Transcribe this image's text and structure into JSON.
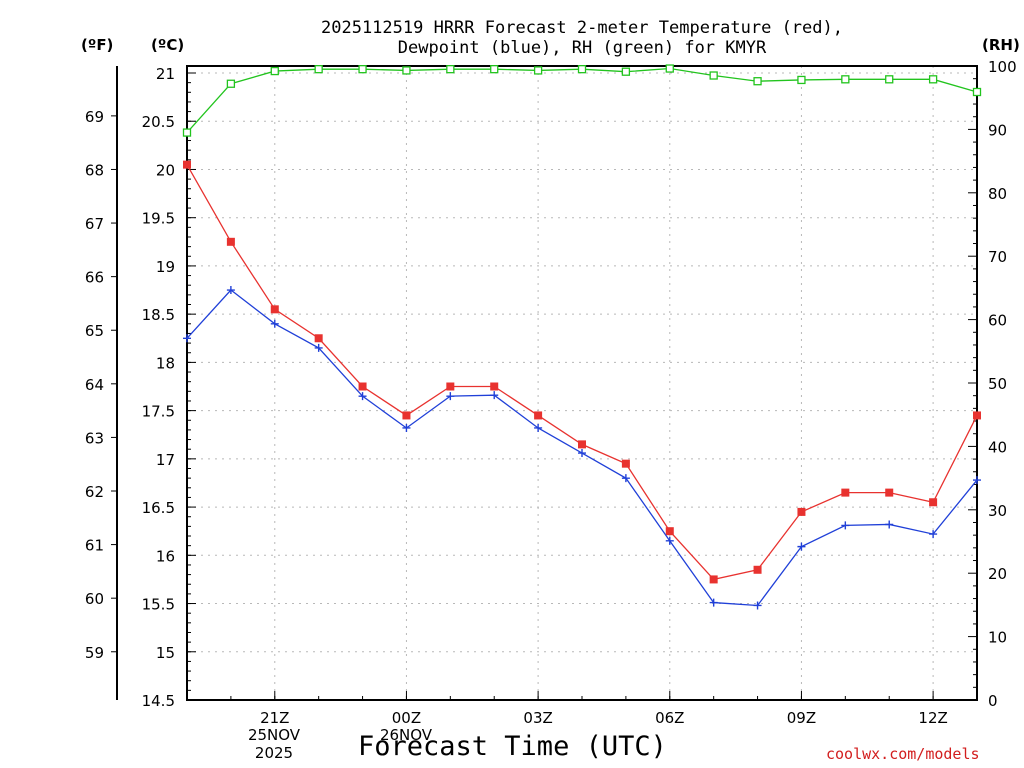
{
  "title_line1": "2025112519 HRRR Forecast 2-meter Temperature (red),",
  "title_line2": "Dewpoint (blue), RH (green) for KMYR",
  "unit_f": "(ºF)",
  "unit_c": "(ºC)",
  "unit_rh": "(RH)",
  "x_axis_title": "Forecast Time (UTC)",
  "credit": "coolwx.com/models",
  "date_labels": [
    {
      "day": "25NOV",
      "year": "2025"
    },
    {
      "day": "26NOV",
      "year": ""
    }
  ],
  "colors": {
    "temperature": "#e8322f",
    "dewpoint": "#2040d8",
    "rh": "#22c41e",
    "grid": "#b8b8b8"
  },
  "chart_data": {
    "type": "line",
    "title": "2025112519 HRRR Forecast 2-meter Temperature (red), Dewpoint (blue), RH (green) for KMYR",
    "xlabel": "Forecast Time (UTC)",
    "x": [
      19,
      20,
      21,
      22,
      23,
      24,
      25,
      26,
      27,
      28,
      29,
      30,
      31,
      32,
      33,
      34,
      35,
      36,
      37
    ],
    "x_tick_labels": [
      {
        "x": 21,
        "label": "21Z"
      },
      {
        "x": 24,
        "label": "00Z"
      },
      {
        "x": 27,
        "label": "03Z"
      },
      {
        "x": 30,
        "label": "06Z"
      },
      {
        "x": 33,
        "label": "09Z"
      },
      {
        "x": 36,
        "label": "12Z"
      }
    ],
    "xlim": [
      19,
      37
    ],
    "celsius_axis": {
      "label": "(ºC)",
      "ylim": [
        14.5,
        21.05
      ],
      "ticks": [
        "21",
        "20.5",
        "20",
        "19.5",
        "19",
        "18.5",
        "18",
        "17.5",
        "17",
        "16.5",
        "16",
        "15.5",
        "15",
        "14.5"
      ]
    },
    "fahrenheit_axis": {
      "label": "(ºF)",
      "ticks": [
        "69",
        "68",
        "67",
        "66",
        "65",
        "64",
        "63",
        "62",
        "61",
        "60",
        "59"
      ]
    },
    "rh_axis": {
      "label": "(RH)",
      "ylim": [
        0,
        100
      ],
      "ticks": [
        "100",
        "90",
        "80",
        "70",
        "60",
        "50",
        "40",
        "30",
        "20",
        "10",
        "0"
      ]
    },
    "series": [
      {
        "name": "Temperature",
        "axis": "celsius",
        "marker": "filled-square",
        "values": [
          20.05,
          19.25,
          18.55,
          18.25,
          17.75,
          17.45,
          17.75,
          17.75,
          17.45,
          17.15,
          16.95,
          16.25,
          15.75,
          15.85,
          16.45,
          16.65,
          16.65,
          16.55,
          17.45
        ]
      },
      {
        "name": "Dewpoint",
        "axis": "celsius",
        "marker": "plus",
        "values": [
          18.25,
          18.75,
          18.4,
          18.15,
          17.65,
          17.32,
          17.65,
          17.66,
          17.32,
          17.06,
          16.8,
          16.15,
          15.51,
          15.48,
          16.09,
          16.31,
          16.32,
          16.22,
          16.78
        ]
      },
      {
        "name": "RH",
        "axis": "rh",
        "marker": "open-square",
        "values": [
          89.5,
          97.2,
          99.2,
          99.5,
          99.5,
          99.3,
          99.5,
          99.5,
          99.3,
          99.5,
          99.1,
          99.6,
          98.5,
          97.6,
          97.8,
          97.9,
          97.9,
          97.9,
          95.9
        ]
      }
    ]
  }
}
